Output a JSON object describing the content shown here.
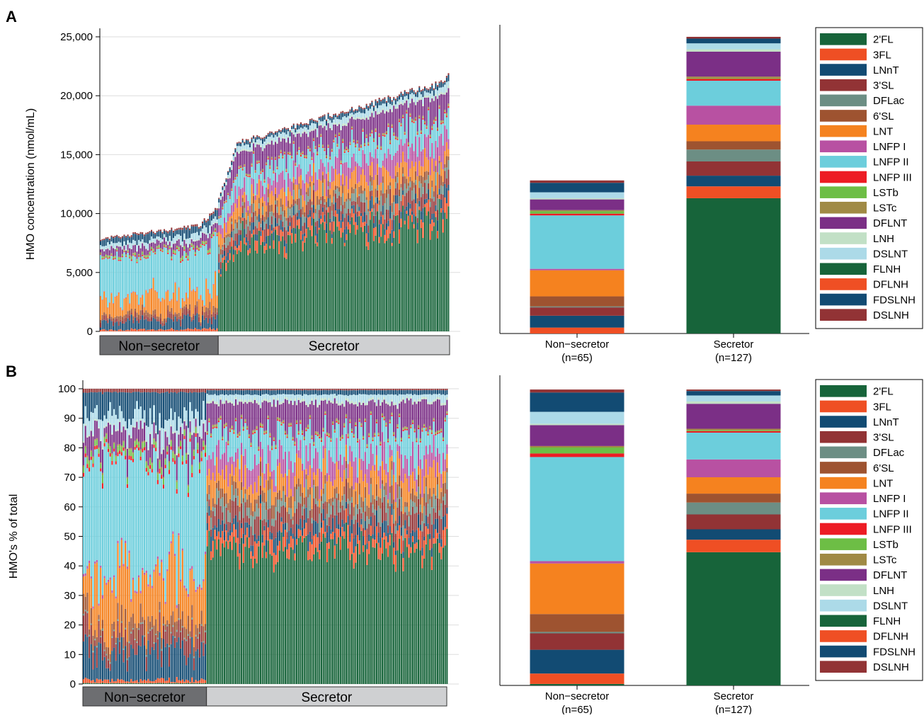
{
  "colors": {
    "2'FL": "#17643a",
    "3FL": "#ef4f24",
    "LNnT": "#124b73",
    "3'SL": "#923335",
    "DFLac": "#6c8e84",
    "6'SL": "#9e5330",
    "LNT": "#f5821f",
    "LNFP I": "#b851a2",
    "LNFP II": "#6ccedc",
    "LNFP III": "#ed1c24",
    "LSTb": "#6dbe45",
    "LSTc": "#a08a45",
    "DFLNT": "#7b2f86",
    "LNH": "#c2e0c6",
    "DSLNT": "#acdae8",
    "FLNH": "#17643a",
    "DFLNH": "#ef4f24",
    "FDSLNH": "#124b73",
    "DSLNH": "#923335"
  },
  "chart_data": [
    {
      "panel": "A",
      "type": "bar",
      "stacked": true,
      "title": "",
      "ylabel": "HMO concentration (nmol/mL)",
      "ylim": [
        0,
        25000
      ],
      "yticks": [
        "0",
        "5,000",
        "10,000",
        "15,000",
        "20,000",
        "25,000"
      ],
      "ytick_values": [
        0,
        5000,
        10000,
        15000,
        20000,
        25000
      ],
      "groups": [
        "Non−secretor",
        "Secretor"
      ],
      "n_samples": {
        "Non−secretor": 65,
        "Secretor": 127
      },
      "total_range": {
        "Non−secretor": [
          7900,
          10700
        ],
        "Secretor": [
          11200,
          22100
        ]
      }
    },
    {
      "panel": "A",
      "type": "bar",
      "stacked": true,
      "categories": [
        "Non−secretor\n(n=65)",
        "Secretor\n(n=127)"
      ],
      "category_lines": [
        [
          "Non−secretor",
          "(n=65)"
        ],
        [
          "Secretor",
          "(n=127)"
        ]
      ],
      "ylim": [
        0,
        25000
      ],
      "series": [
        {
          "name": "2'FL",
          "values": [
            0,
            11400
          ]
        },
        {
          "name": "3FL",
          "values": [
            500,
            1000
          ]
        },
        {
          "name": "LNnT",
          "values": [
            1000,
            900
          ]
        },
        {
          "name": "3'SL",
          "values": [
            700,
            1200
          ]
        },
        {
          "name": "DFLac",
          "values": [
            80,
            1000
          ]
        },
        {
          "name": "6'SL",
          "values": [
            850,
            700
          ]
        },
        {
          "name": "LNT",
          "values": [
            2200,
            1400
          ]
        },
        {
          "name": "LNFP I",
          "values": [
            120,
            1600
          ]
        },
        {
          "name": "LNFP II",
          "values": [
            4500,
            2100
          ]
        },
        {
          "name": "LNFP III",
          "values": [
            150,
            150
          ]
        },
        {
          "name": "LSTb",
          "values": [
            200,
            50
          ]
        },
        {
          "name": "LSTc",
          "values": [
            100,
            150
          ]
        },
        {
          "name": "DFLNT",
          "values": [
            900,
            2100
          ]
        },
        {
          "name": "LNH",
          "values": [
            100,
            200
          ]
        },
        {
          "name": "DSLNT",
          "values": [
            500,
            500
          ]
        },
        {
          "name": "FLNH",
          "values": [
            0,
            0
          ]
        },
        {
          "name": "DFLNH",
          "values": [
            0,
            0
          ]
        },
        {
          "name": "FDSLNH",
          "values": [
            800,
            400
          ]
        },
        {
          "name": "DSLNH",
          "values": [
            200,
            150
          ]
        }
      ],
      "legend": [
        "2'FL",
        "3FL",
        "LNnT",
        "3'SL",
        "DFLac",
        "6'SL",
        "LNT",
        "LNFP I",
        "LNFP II",
        "LNFP III",
        "LSTb",
        "LSTc",
        "DFLNT",
        "LNH",
        "DSLNT",
        "FLNH",
        "DFLNH",
        "FDSLNH",
        "DSLNH"
      ],
      "legend_position": "right"
    },
    {
      "panel": "B",
      "type": "bar",
      "stacked": true,
      "ylabel": "HMO's % of total",
      "ylim": [
        0,
        100
      ],
      "yticks": [
        "0",
        "10",
        "20",
        "30",
        "40",
        "50",
        "60",
        "70",
        "80",
        "90",
        "100"
      ],
      "ytick_values": [
        0,
        10,
        20,
        30,
        40,
        50,
        60,
        70,
        80,
        90,
        100
      ],
      "groups": [
        "Non−secretor",
        "Secretor"
      ],
      "n_samples": {
        "Non−secretor": 65,
        "Secretor": 127
      }
    },
    {
      "panel": "B",
      "type": "bar",
      "stacked": true,
      "categories": [
        "Non−secretor\n(n=65)",
        "Secretor\n(n=127)"
      ],
      "category_lines": [
        [
          "Non−secretor",
          "(n=65)"
        ],
        [
          "Secretor",
          "(n=127)"
        ]
      ],
      "ylim": [
        0,
        100
      ],
      "series": [
        {
          "name": "2'FL",
          "values": [
            0.5,
            44.8
          ]
        },
        {
          "name": "3FL",
          "values": [
            3.5,
            4.2
          ]
        },
        {
          "name": "LNnT",
          "values": [
            8.0,
            3.5
          ]
        },
        {
          "name": "3'SL",
          "values": [
            5.5,
            5.0
          ]
        },
        {
          "name": "DFLac",
          "values": [
            0.5,
            4.0
          ]
        },
        {
          "name": "6'SL",
          "values": [
            6.0,
            3.0
          ]
        },
        {
          "name": "LNT",
          "values": [
            17.0,
            5.5
          ]
        },
        {
          "name": "LNFP I",
          "values": [
            0.8,
            6.0
          ]
        },
        {
          "name": "LNFP II",
          "values": [
            35.0,
            9.0
          ]
        },
        {
          "name": "LNFP III",
          "values": [
            1.2,
            0.5
          ]
        },
        {
          "name": "LSTb",
          "values": [
            2.0,
            0.3
          ]
        },
        {
          "name": "LSTc",
          "values": [
            0.5,
            0.5
          ]
        },
        {
          "name": "DFLNT",
          "values": [
            7.0,
            8.4
          ]
        },
        {
          "name": "LNH",
          "values": [
            0.5,
            0.8
          ]
        },
        {
          "name": "DSLNT",
          "values": [
            4.0,
            2.0
          ]
        },
        {
          "name": "FLNH",
          "values": [
            0,
            0
          ]
        },
        {
          "name": "DFLNH",
          "values": [
            0,
            0
          ]
        },
        {
          "name": "FDSLNH",
          "values": [
            6.5,
            1.5
          ]
        },
        {
          "name": "DSLNH",
          "values": [
            1.0,
            0.5
          ]
        }
      ],
      "legend": [
        "2'FL",
        "3FL",
        "LNnT",
        "3'SL",
        "DFLac",
        "6'SL",
        "LNT",
        "LNFP I",
        "LNFP II",
        "LNFP III",
        "LSTb",
        "LSTc",
        "DFLNT",
        "LNH",
        "DSLNT",
        "FLNH",
        "DFLNH",
        "FDSLNH",
        "DSLNH"
      ],
      "legend_position": "right"
    }
  ],
  "panels": {
    "a_label": "A",
    "b_label": "B"
  }
}
